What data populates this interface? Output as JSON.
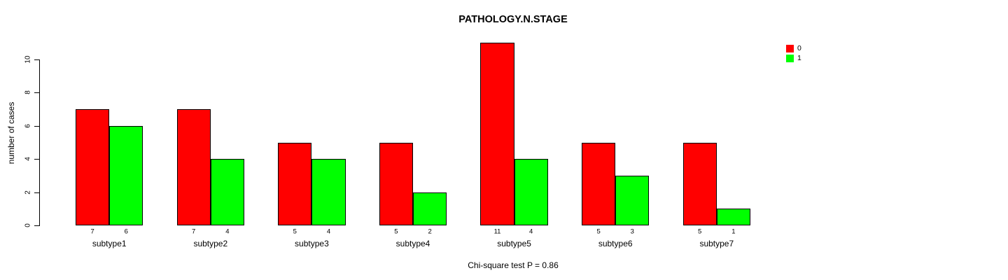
{
  "figure": {
    "title": "PATHOLOGY.N.STAGE",
    "ylabel": "number of cases",
    "footnote": "Chi-square test P = 0.86"
  },
  "chart_data": {
    "type": "bar",
    "grouped": true,
    "title": "PATHOLOGY.N.STAGE",
    "xlabel": "",
    "ylabel": "number of cases",
    "categories": [
      "subtype1",
      "subtype2",
      "subtype3",
      "subtype4",
      "subtype5",
      "subtype6",
      "subtype7"
    ],
    "series": [
      {
        "name": "0",
        "color": "#ff0000",
        "values": [
          7,
          7,
          5,
          5,
          11,
          5,
          5
        ]
      },
      {
        "name": "1",
        "color": "#00ff00",
        "values": [
          6,
          4,
          4,
          2,
          4,
          3,
          1
        ]
      }
    ],
    "bar_value_labels_shown": true,
    "yticks": [
      0,
      2,
      4,
      6,
      8,
      10
    ],
    "ylim": [
      0,
      11
    ],
    "grid": false,
    "legend": {
      "position": "top-right",
      "entries": [
        {
          "label": "0",
          "color": "#ff0000"
        },
        {
          "label": "1",
          "color": "#00ff00"
        }
      ]
    },
    "annotation": "Chi-square test P = 0.86"
  }
}
